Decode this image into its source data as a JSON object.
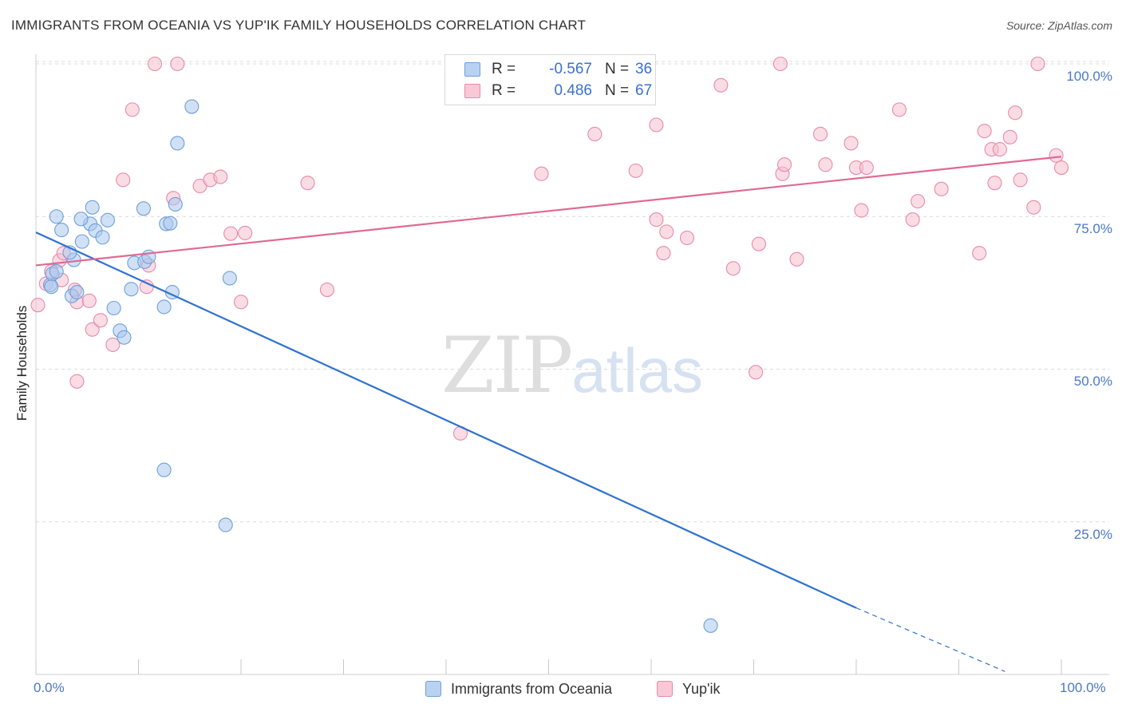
{
  "title": "IMMIGRANTS FROM OCEANIA VS YUP'IK FAMILY HOUSEHOLDS CORRELATION CHART",
  "source": "Source: ZipAtlas.com",
  "watermark": {
    "zip": "ZIP",
    "atlas": "atlas"
  },
  "colors": {
    "blue_fill": "#aac8ef",
    "blue_stroke": "#6f9fd8",
    "blue_line": "#2f72d0",
    "pink_fill": "#f6bfd0",
    "pink_stroke": "#e88aaa",
    "pink_line": "#e06a93",
    "axis_text": "#4a78c8",
    "grid": "#dcdcdc"
  },
  "stats": [
    {
      "r_label": "R =",
      "r_value": "-0.567",
      "n_label": "N =",
      "n_value": "36"
    },
    {
      "r_label": "R =",
      "r_value": "0.486",
      "n_label": "N =",
      "n_value": "67"
    }
  ],
  "legend": [
    {
      "label": "Immigrants from Oceania"
    },
    {
      "label": "Yup'ik"
    }
  ],
  "chart_data": {
    "type": "scatter",
    "title": "IMMIGRANTS FROM OCEANIA VS YUP'IK FAMILY HOUSEHOLDS CORRELATION CHART",
    "xlabel": "",
    "ylabel": "Family Households",
    "xlim": [
      0,
      100
    ],
    "ylim": [
      0,
      100
    ],
    "x_tick_labels": [
      "0.0%",
      "100.0%"
    ],
    "y_ticks": [
      25,
      50,
      75,
      100
    ],
    "y_tick_labels": [
      "25.0%",
      "50.0%",
      "75.0%",
      "100.0%"
    ],
    "grid": true,
    "legend_position": "bottom",
    "series": [
      {
        "name": "Immigrants from Oceania",
        "points": [
          [
            1.4,
            63.8
          ],
          [
            1.6,
            65.6
          ],
          [
            1.5,
            63.5
          ],
          [
            2.0,
            66.0
          ],
          [
            2.0,
            75.0
          ],
          [
            2.5,
            72.8
          ],
          [
            3.5,
            62.0
          ],
          [
            3.7,
            67.9
          ],
          [
            4.0,
            62.6
          ],
          [
            3.3,
            69.1
          ],
          [
            4.5,
            70.9
          ],
          [
            5.3,
            73.8
          ],
          [
            4.4,
            74.6
          ],
          [
            5.5,
            76.5
          ],
          [
            5.8,
            72.7
          ],
          [
            6.5,
            71.6
          ],
          [
            7.0,
            74.4
          ],
          [
            8.2,
            56.3
          ],
          [
            8.6,
            55.2
          ],
          [
            7.6,
            60.0
          ],
          [
            9.3,
            63.1
          ],
          [
            9.6,
            67.4
          ],
          [
            10.5,
            76.3
          ],
          [
            10.6,
            67.6
          ],
          [
            11.0,
            68.4
          ],
          [
            12.5,
            60.2
          ],
          [
            12.7,
            73.8
          ],
          [
            13.1,
            73.9
          ],
          [
            13.3,
            62.6
          ],
          [
            13.6,
            77.0
          ],
          [
            13.8,
            87.0
          ],
          [
            15.2,
            93.0
          ],
          [
            12.5,
            33.5
          ],
          [
            18.5,
            24.5
          ],
          [
            18.9,
            64.9
          ],
          [
            65.8,
            8.0
          ]
        ],
        "trend": {
          "x": [
            0,
            80
          ],
          "y": [
            72.4,
            10.9
          ]
        },
        "trend_dashed": {
          "x": [
            80,
            94.5
          ],
          "y": [
            10.9,
            0.5
          ]
        }
      },
      {
        "name": "Yup'ik",
        "points": [
          [
            0.2,
            60.5
          ],
          [
            1.0,
            64.0
          ],
          [
            1.5,
            66.0
          ],
          [
            2.5,
            64.6
          ],
          [
            2.3,
            67.8
          ],
          [
            2.7,
            69.0
          ],
          [
            3.8,
            63.0
          ],
          [
            4.0,
            61.0
          ],
          [
            5.2,
            61.2
          ],
          [
            4.0,
            48.0
          ],
          [
            5.5,
            56.5
          ],
          [
            6.3,
            58.0
          ],
          [
            7.5,
            54.0
          ],
          [
            8.5,
            81.0
          ],
          [
            9.4,
            92.5
          ],
          [
            10.8,
            63.5
          ],
          [
            11.0,
            67.0
          ],
          [
            11.6,
            100.0
          ],
          [
            13.8,
            100.0
          ],
          [
            13.4,
            78.0
          ],
          [
            16.0,
            80.0
          ],
          [
            17.0,
            81.0
          ],
          [
            18.0,
            81.5
          ],
          [
            20.0,
            61.0
          ],
          [
            19.0,
            72.2
          ],
          [
            20.4,
            72.3
          ],
          [
            26.5,
            80.5
          ],
          [
            28.4,
            63.0
          ],
          [
            41.4,
            39.5
          ],
          [
            49.3,
            82.0
          ],
          [
            54.5,
            88.5
          ],
          [
            58.5,
            82.5
          ],
          [
            60.5,
            90.0
          ],
          [
            60.5,
            74.5
          ],
          [
            61.2,
            69.0
          ],
          [
            61.5,
            72.5
          ],
          [
            63.5,
            71.5
          ],
          [
            66.8,
            96.5
          ],
          [
            68.0,
            66.5
          ],
          [
            70.2,
            49.5
          ],
          [
            70.5,
            70.5
          ],
          [
            72.6,
            100.0
          ],
          [
            72.8,
            82.0
          ],
          [
            73.0,
            83.5
          ],
          [
            74.2,
            68.0
          ],
          [
            76.5,
            88.5
          ],
          [
            77.0,
            83.5
          ],
          [
            79.5,
            87.0
          ],
          [
            80.0,
            83.0
          ],
          [
            80.5,
            76.0
          ],
          [
            81.0,
            83.0
          ],
          [
            84.2,
            92.5
          ],
          [
            85.5,
            74.5
          ],
          [
            86.0,
            77.5
          ],
          [
            88.3,
            79.5
          ],
          [
            92.0,
            69.0
          ],
          [
            92.5,
            89.0
          ],
          [
            93.2,
            86.0
          ],
          [
            93.5,
            80.5
          ],
          [
            94.0,
            86.0
          ],
          [
            95.0,
            88.0
          ],
          [
            95.5,
            92.0
          ],
          [
            96.0,
            81.0
          ],
          [
            97.3,
            76.5
          ],
          [
            97.7,
            100.0
          ],
          [
            99.5,
            85.0
          ],
          [
            100.0,
            83.0
          ]
        ],
        "trend": {
          "x": [
            0,
            100
          ],
          "y": [
            67.0,
            84.8
          ]
        }
      }
    ]
  }
}
